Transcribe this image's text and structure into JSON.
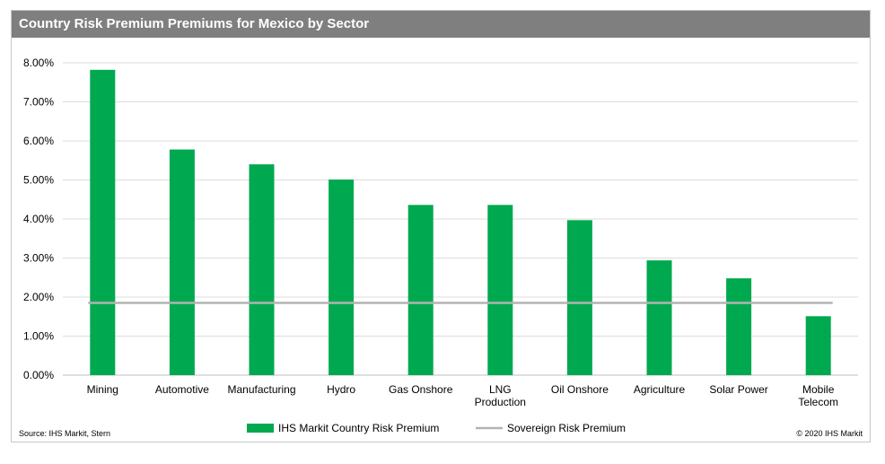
{
  "chart_data": {
    "type": "bar",
    "title": "Country Risk Premium Premiums for Mexico by Sector",
    "categories": [
      "Mining",
      "Automotive",
      "Manufacturing",
      "Hydro",
      "Gas Onshore",
      "LNG Production",
      "Oil Onshore",
      "Agriculture",
      "Solar Power",
      "Mobile Telecom"
    ],
    "category_lines": [
      [
        "Mining"
      ],
      [
        "Automotive"
      ],
      [
        "Manufacturing"
      ],
      [
        "Hydro"
      ],
      [
        "Gas Onshore"
      ],
      [
        "LNG",
        "Production"
      ],
      [
        "Oil Onshore"
      ],
      [
        "Agriculture"
      ],
      [
        "Solar Power"
      ],
      [
        "Mobile",
        "Telecom"
      ]
    ],
    "series": [
      {
        "name": "IHS Markit Country Risk Premium",
        "type": "bar",
        "color": "#00a94f",
        "values": [
          7.82,
          5.78,
          5.4,
          5.01,
          4.36,
          4.36,
          3.97,
          2.94,
          2.48,
          1.51
        ]
      },
      {
        "name": "Sovereign Risk Premium",
        "type": "line",
        "color": "#b3b3b3",
        "values": [
          1.85,
          1.85,
          1.85,
          1.85,
          1.85,
          1.85,
          1.85,
          1.85,
          1.85,
          1.85
        ]
      }
    ],
    "ylim": [
      0,
      8
    ],
    "yticks": [
      "0.00%",
      "1.00%",
      "2.00%",
      "3.00%",
      "4.00%",
      "5.00%",
      "6.00%",
      "7.00%",
      "8.00%"
    ],
    "grid": true,
    "legend_position": "bottom"
  },
  "footer": {
    "source": "Source: IHS Markit, Stern",
    "copyright": "© 2020 IHS Markit"
  }
}
